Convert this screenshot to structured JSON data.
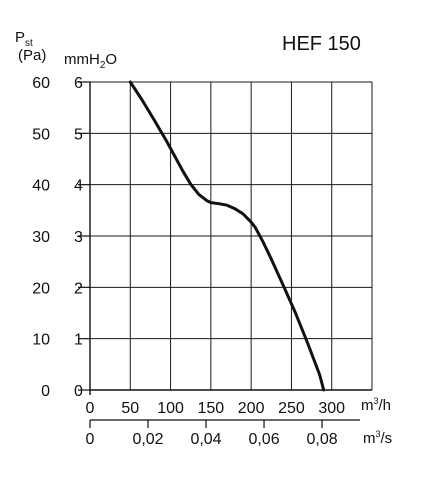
{
  "chart_data": {
    "type": "line",
    "title": "HEF 150",
    "ylabel_left": {
      "symbol": "P",
      "subscript": "st",
      "unit": "(Pa)"
    },
    "ylabel_right": {
      "prefix": "mmH",
      "subscript": "2",
      "suffix": "O"
    },
    "xlabel_top": {
      "base": "m",
      "superscript": "3",
      "suffix": "/h"
    },
    "xlabel_bottom": {
      "base": "m",
      "superscript": "3",
      "suffix": "/s"
    },
    "x_ticks_m3h": [
      "0",
      "50",
      "100",
      "150",
      "200",
      "250",
      "300"
    ],
    "x_ticks_m3s": [
      "0",
      "0,02",
      "0,04",
      "0,06",
      "0,08"
    ],
    "y_ticks_pa": [
      "0",
      "10",
      "20",
      "30",
      "40",
      "50",
      "60"
    ],
    "y_ticks_mmh2o": [
      "0",
      "1",
      "2",
      "3",
      "4",
      "5",
      "6"
    ],
    "xlim_m3h": [
      0,
      350
    ],
    "ylim_pa": [
      0,
      60
    ],
    "grid": true,
    "series": [
      {
        "x": [
          50,
          65,
          80,
          95,
          105,
          115,
          125,
          135,
          145,
          150,
          160,
          170,
          180,
          190,
          200,
          205,
          215,
          225,
          240,
          255,
          270,
          285,
          290
        ],
        "y": [
          60,
          56.4,
          52.5,
          48.5,
          45.6,
          42.7,
          40.1,
          38.1,
          36.9,
          36.5,
          36.3,
          36.0,
          35.3,
          34.3,
          32.7,
          31.7,
          28.8,
          25.5,
          20.3,
          15.0,
          9.2,
          3.0,
          0
        ]
      }
    ]
  }
}
